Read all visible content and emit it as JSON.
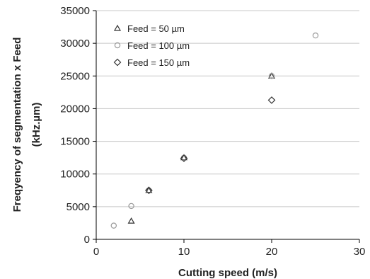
{
  "chart_data": {
    "type": "scatter",
    "title": "",
    "xlabel": "Cutting speed (m/s)",
    "ylabel_line1": "Freqyency of segmentation x Feed",
    "ylabel_line2": "(kHz.µm)",
    "xlim": [
      0,
      30
    ],
    "ylim": [
      0,
      35000
    ],
    "xticks": [
      "0",
      "10",
      "20",
      "30"
    ],
    "yticks": [
      "0",
      "5000",
      "10000",
      "15000",
      "20000",
      "25000",
      "30000",
      "35000"
    ],
    "grid": "horizontal",
    "legend_position": "top-left",
    "series": [
      {
        "name": "Feed = 50 µm",
        "marker": "triangle",
        "color": "#333333",
        "points": [
          [
            4,
            2800
          ],
          [
            6,
            7500
          ],
          [
            10,
            12500
          ],
          [
            20,
            25000
          ]
        ]
      },
      {
        "name": "Feed = 100 µm",
        "marker": "circle",
        "color": "#999999",
        "points": [
          [
            2,
            2100
          ],
          [
            4,
            5100
          ],
          [
            6,
            7500
          ],
          [
            10,
            12500
          ],
          [
            20,
            25000
          ],
          [
            25,
            31200
          ]
        ]
      },
      {
        "name": "Feed = 150 µm",
        "marker": "diamond",
        "color": "#333333",
        "points": [
          [
            6,
            7500
          ],
          [
            10,
            12400
          ],
          [
            20,
            21300
          ]
        ]
      }
    ]
  }
}
